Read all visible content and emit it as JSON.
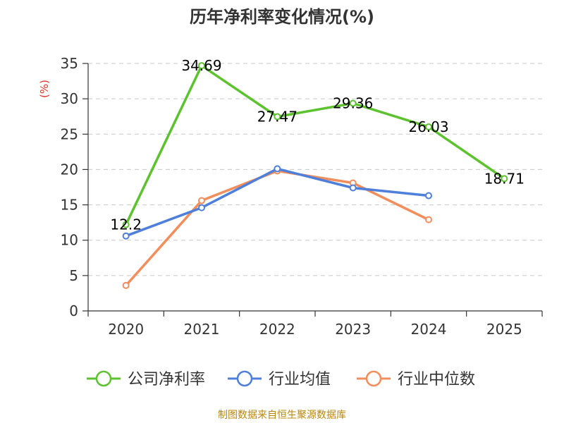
{
  "chart_data": {
    "type": "line",
    "title": "历年净利率变化情况(%)",
    "ylabel": "(%)",
    "xlabel": "",
    "categories": [
      "2020",
      "2021",
      "2022",
      "2023",
      "2024",
      "2025"
    ],
    "yticks": [
      "0",
      "5",
      "10",
      "15",
      "20",
      "25",
      "30",
      "35"
    ],
    "ylim": [
      0,
      35
    ],
    "grid": true,
    "legend_position": "bottom",
    "series": [
      {
        "name": "公司净利率",
        "color": "#5cc22e",
        "values": [
          12.2,
          34.69,
          27.47,
          29.36,
          26.03,
          18.71
        ],
        "labels": [
          "12.2",
          "34.69",
          "27.47",
          "29.36",
          "26.03",
          "18.71"
        ]
      },
      {
        "name": "行业均值",
        "color": "#4e7fdb",
        "values": [
          10.6,
          14.6,
          20.1,
          17.4,
          16.3,
          null
        ]
      },
      {
        "name": "行业中位数",
        "color": "#f28d5c",
        "values": [
          3.6,
          15.6,
          19.8,
          18.1,
          12.9,
          null
        ]
      }
    ]
  },
  "footer": {
    "source": "制图数据来自恒生聚源数据库"
  }
}
